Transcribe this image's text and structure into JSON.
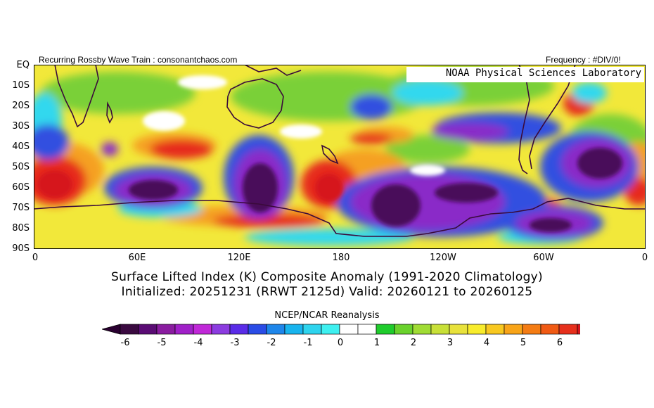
{
  "header": {
    "left_note": "Recurring Rossby Wave Train : consonantchaos.com",
    "right_note": "Frequency : #DIV/0!",
    "psl_label": "NOAA Physical Sciences Laboratory"
  },
  "axes": {
    "lat_labels": [
      "EQ",
      "10S",
      "20S",
      "30S",
      "40S",
      "50S",
      "60S",
      "70S",
      "80S",
      "90S"
    ],
    "lon_labels": [
      "0",
      "60E",
      "120E",
      "180",
      "120W",
      "60W",
      "0"
    ]
  },
  "titles": {
    "line1": "Surface Lifted Index (K) Composite Anomaly (1991-2020 Climatology)",
    "line2": "Initialized: 20251231 (RRWT 2125d) Valid: 20260121 to 20260125",
    "source": "NCEP/NCAR Reanalysis"
  },
  "colorbar": {
    "tick_labels": [
      "-6",
      "-5",
      "-4",
      "-3",
      "-2",
      "-1",
      "0",
      "1",
      "2",
      "3",
      "4",
      "5",
      "6"
    ],
    "colors": [
      "#3a0a40",
      "#5a0c74",
      "#8a1ca0",
      "#a020c8",
      "#c028d8",
      "#8c3ce0",
      "#5a2ce8",
      "#2a4ce6",
      "#1e86ea",
      "#18b4ee",
      "#2ed4ee",
      "#3ef0f0",
      "#ffffff",
      "#ffffff",
      "#1fcc2c",
      "#6ad22c",
      "#a0dc34",
      "#c8e038",
      "#e8e23c",
      "#f8ec2c",
      "#f8c820",
      "#f8a418",
      "#f47c14",
      "#f05a14",
      "#e6301c",
      "#d6141c"
    ]
  },
  "map_colors": {
    "red": "#e62a1c",
    "orange": "#f5a020",
    "yellow": "#f2e83a",
    "green": "#7ad038",
    "cyan": "#30d8ee",
    "blue": "#3050e0",
    "purple": "#8a2ac8",
    "darkpurple": "#4a0a5a",
    "coast": "#3a0a3a"
  }
}
